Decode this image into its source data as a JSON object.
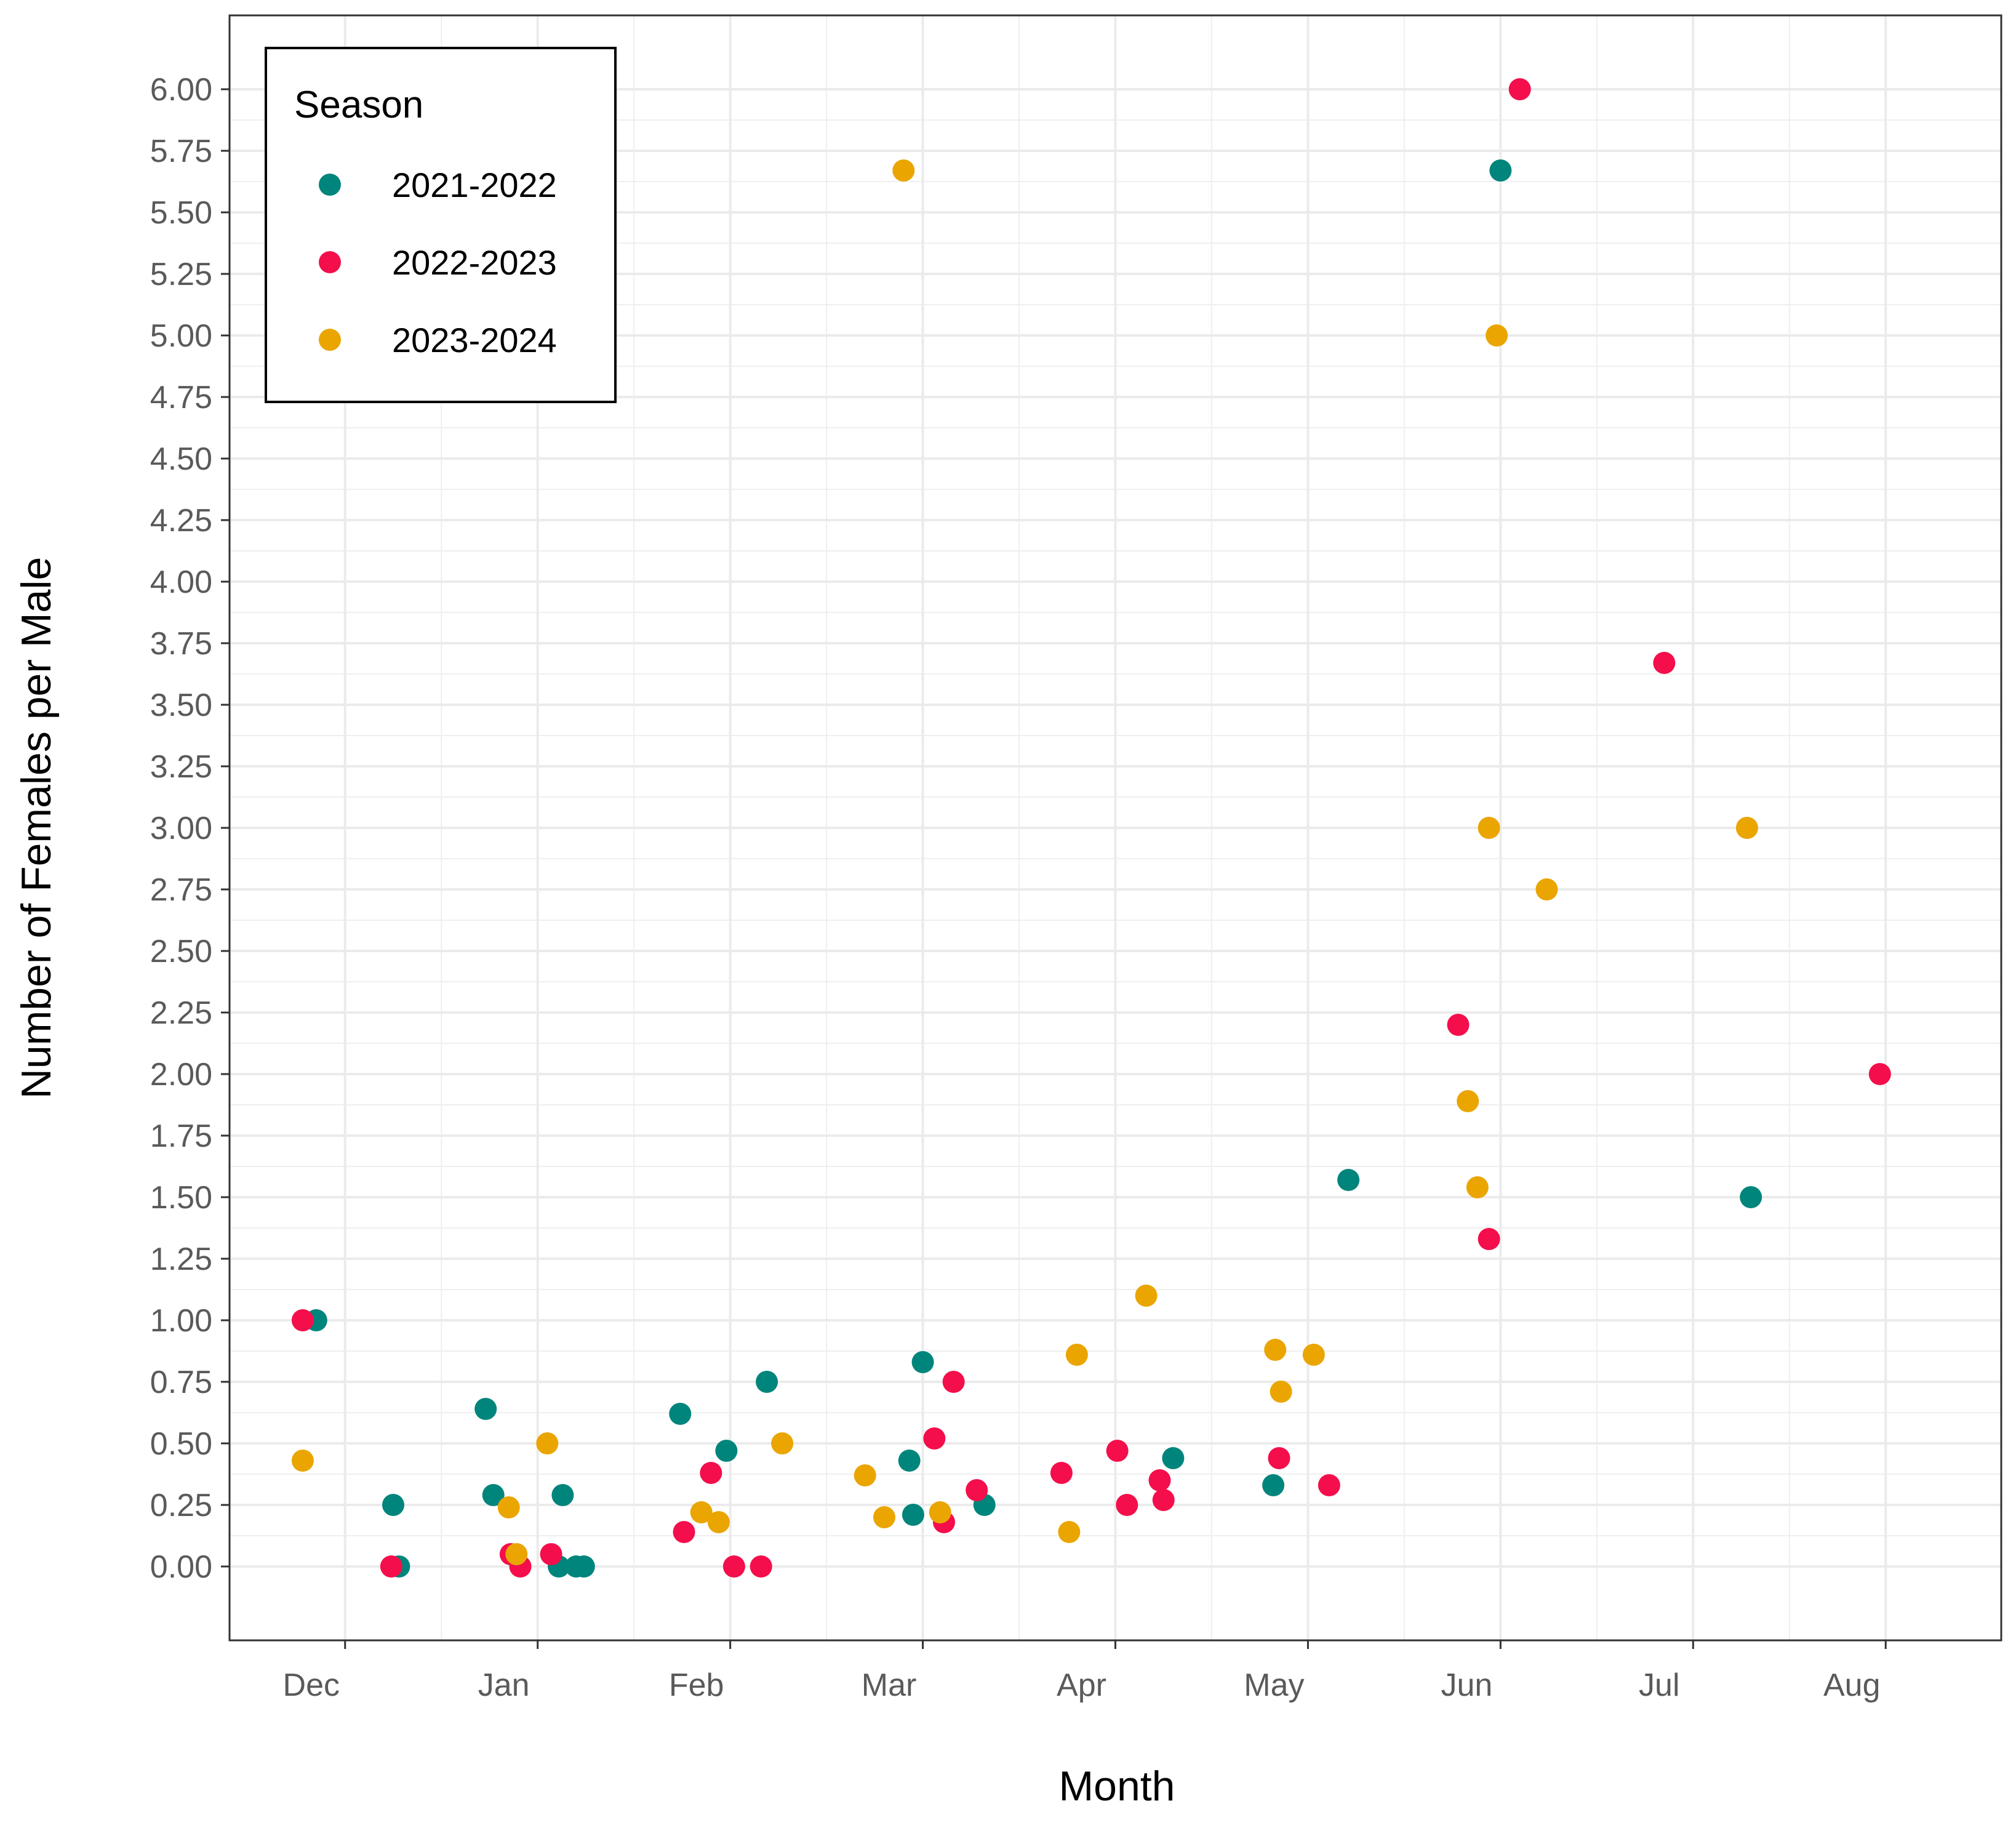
{
  "chart_data": {
    "type": "scatter",
    "title": "",
    "xlabel": "Month",
    "ylabel": "Number of Females per Male",
    "x_ticks": [
      "Dec",
      "Jan",
      "Feb",
      "Mar",
      "Apr",
      "May",
      "Jun",
      "Jul",
      "Aug"
    ],
    "xlim": [
      -0.6,
      8.6
    ],
    "ylim": [
      -0.3,
      6.3
    ],
    "y_ticks": [
      "0.00",
      "0.25",
      "0.50",
      "0.75",
      "1.00",
      "1.25",
      "1.50",
      "1.75",
      "2.00",
      "2.25",
      "2.50",
      "2.75",
      "3.00",
      "3.25",
      "3.50",
      "3.75",
      "4.00",
      "4.25",
      "4.50",
      "4.75",
      "5.00",
      "5.25",
      "5.50",
      "5.75",
      "6.00"
    ],
    "grid": true,
    "legend": {
      "title": "Season",
      "position": "top-left"
    },
    "series": [
      {
        "name": "2021-2022",
        "color": "#00857c",
        "points": [
          [
            -0.15,
            1.0
          ],
          [
            0.28,
            0.0
          ],
          [
            0.25,
            0.25
          ],
          [
            0.73,
            0.64
          ],
          [
            0.77,
            0.29
          ],
          [
            1.11,
            0.0
          ],
          [
            1.13,
            0.29
          ],
          [
            1.2,
            0.0
          ],
          [
            1.24,
            0.0
          ],
          [
            1.74,
            0.62
          ],
          [
            1.98,
            0.47
          ],
          [
            2.19,
            0.75
          ],
          [
            2.93,
            0.43
          ],
          [
            2.95,
            0.21
          ],
          [
            3.0,
            0.83
          ],
          [
            3.32,
            0.25
          ],
          [
            4.3,
            0.44
          ],
          [
            4.82,
            0.33
          ],
          [
            5.21,
            1.57
          ],
          [
            6.0,
            5.67
          ],
          [
            7.3,
            1.5
          ]
        ]
      },
      {
        "name": "2022-2023",
        "color": "#f40e4b",
        "points": [
          [
            -0.22,
            1.0
          ],
          [
            0.24,
            0.0
          ],
          [
            0.86,
            0.05
          ],
          [
            0.91,
            0.0
          ],
          [
            1.07,
            0.05
          ],
          [
            1.76,
            0.14
          ],
          [
            1.9,
            0.38
          ],
          [
            2.02,
            0.0
          ],
          [
            2.16,
            0.0
          ],
          [
            3.06,
            0.52
          ],
          [
            3.11,
            0.18
          ],
          [
            3.16,
            0.75
          ],
          [
            3.28,
            0.31
          ],
          [
            3.72,
            0.38
          ],
          [
            4.01,
            0.47
          ],
          [
            4.06,
            0.25
          ],
          [
            4.23,
            0.35
          ],
          [
            4.25,
            0.27
          ],
          [
            4.85,
            0.44
          ],
          [
            5.11,
            0.33
          ],
          [
            5.78,
            2.2
          ],
          [
            5.94,
            1.33
          ],
          [
            6.1,
            6.0
          ],
          [
            6.85,
            3.67
          ],
          [
            7.97,
            2.0
          ]
        ]
      },
      {
        "name": "2023-2024",
        "color": "#eaa500",
        "points": [
          [
            -0.22,
            0.43
          ],
          [
            0.85,
            0.24
          ],
          [
            0.89,
            0.05
          ],
          [
            1.05,
            0.5
          ],
          [
            1.85,
            0.22
          ],
          [
            1.94,
            0.18
          ],
          [
            2.27,
            0.5
          ],
          [
            2.7,
            0.37
          ],
          [
            2.8,
            0.2
          ],
          [
            2.9,
            5.67
          ],
          [
            3.09,
            0.22
          ],
          [
            3.76,
            0.14
          ],
          [
            3.8,
            0.86
          ],
          [
            4.16,
            1.1
          ],
          [
            4.83,
            0.88
          ],
          [
            4.86,
            0.71
          ],
          [
            5.03,
            0.86
          ],
          [
            5.83,
            1.89
          ],
          [
            5.88,
            1.54
          ],
          [
            5.94,
            3.0
          ],
          [
            5.98,
            5.0
          ],
          [
            6.24,
            2.75
          ],
          [
            7.28,
            3.0
          ]
        ]
      }
    ]
  }
}
